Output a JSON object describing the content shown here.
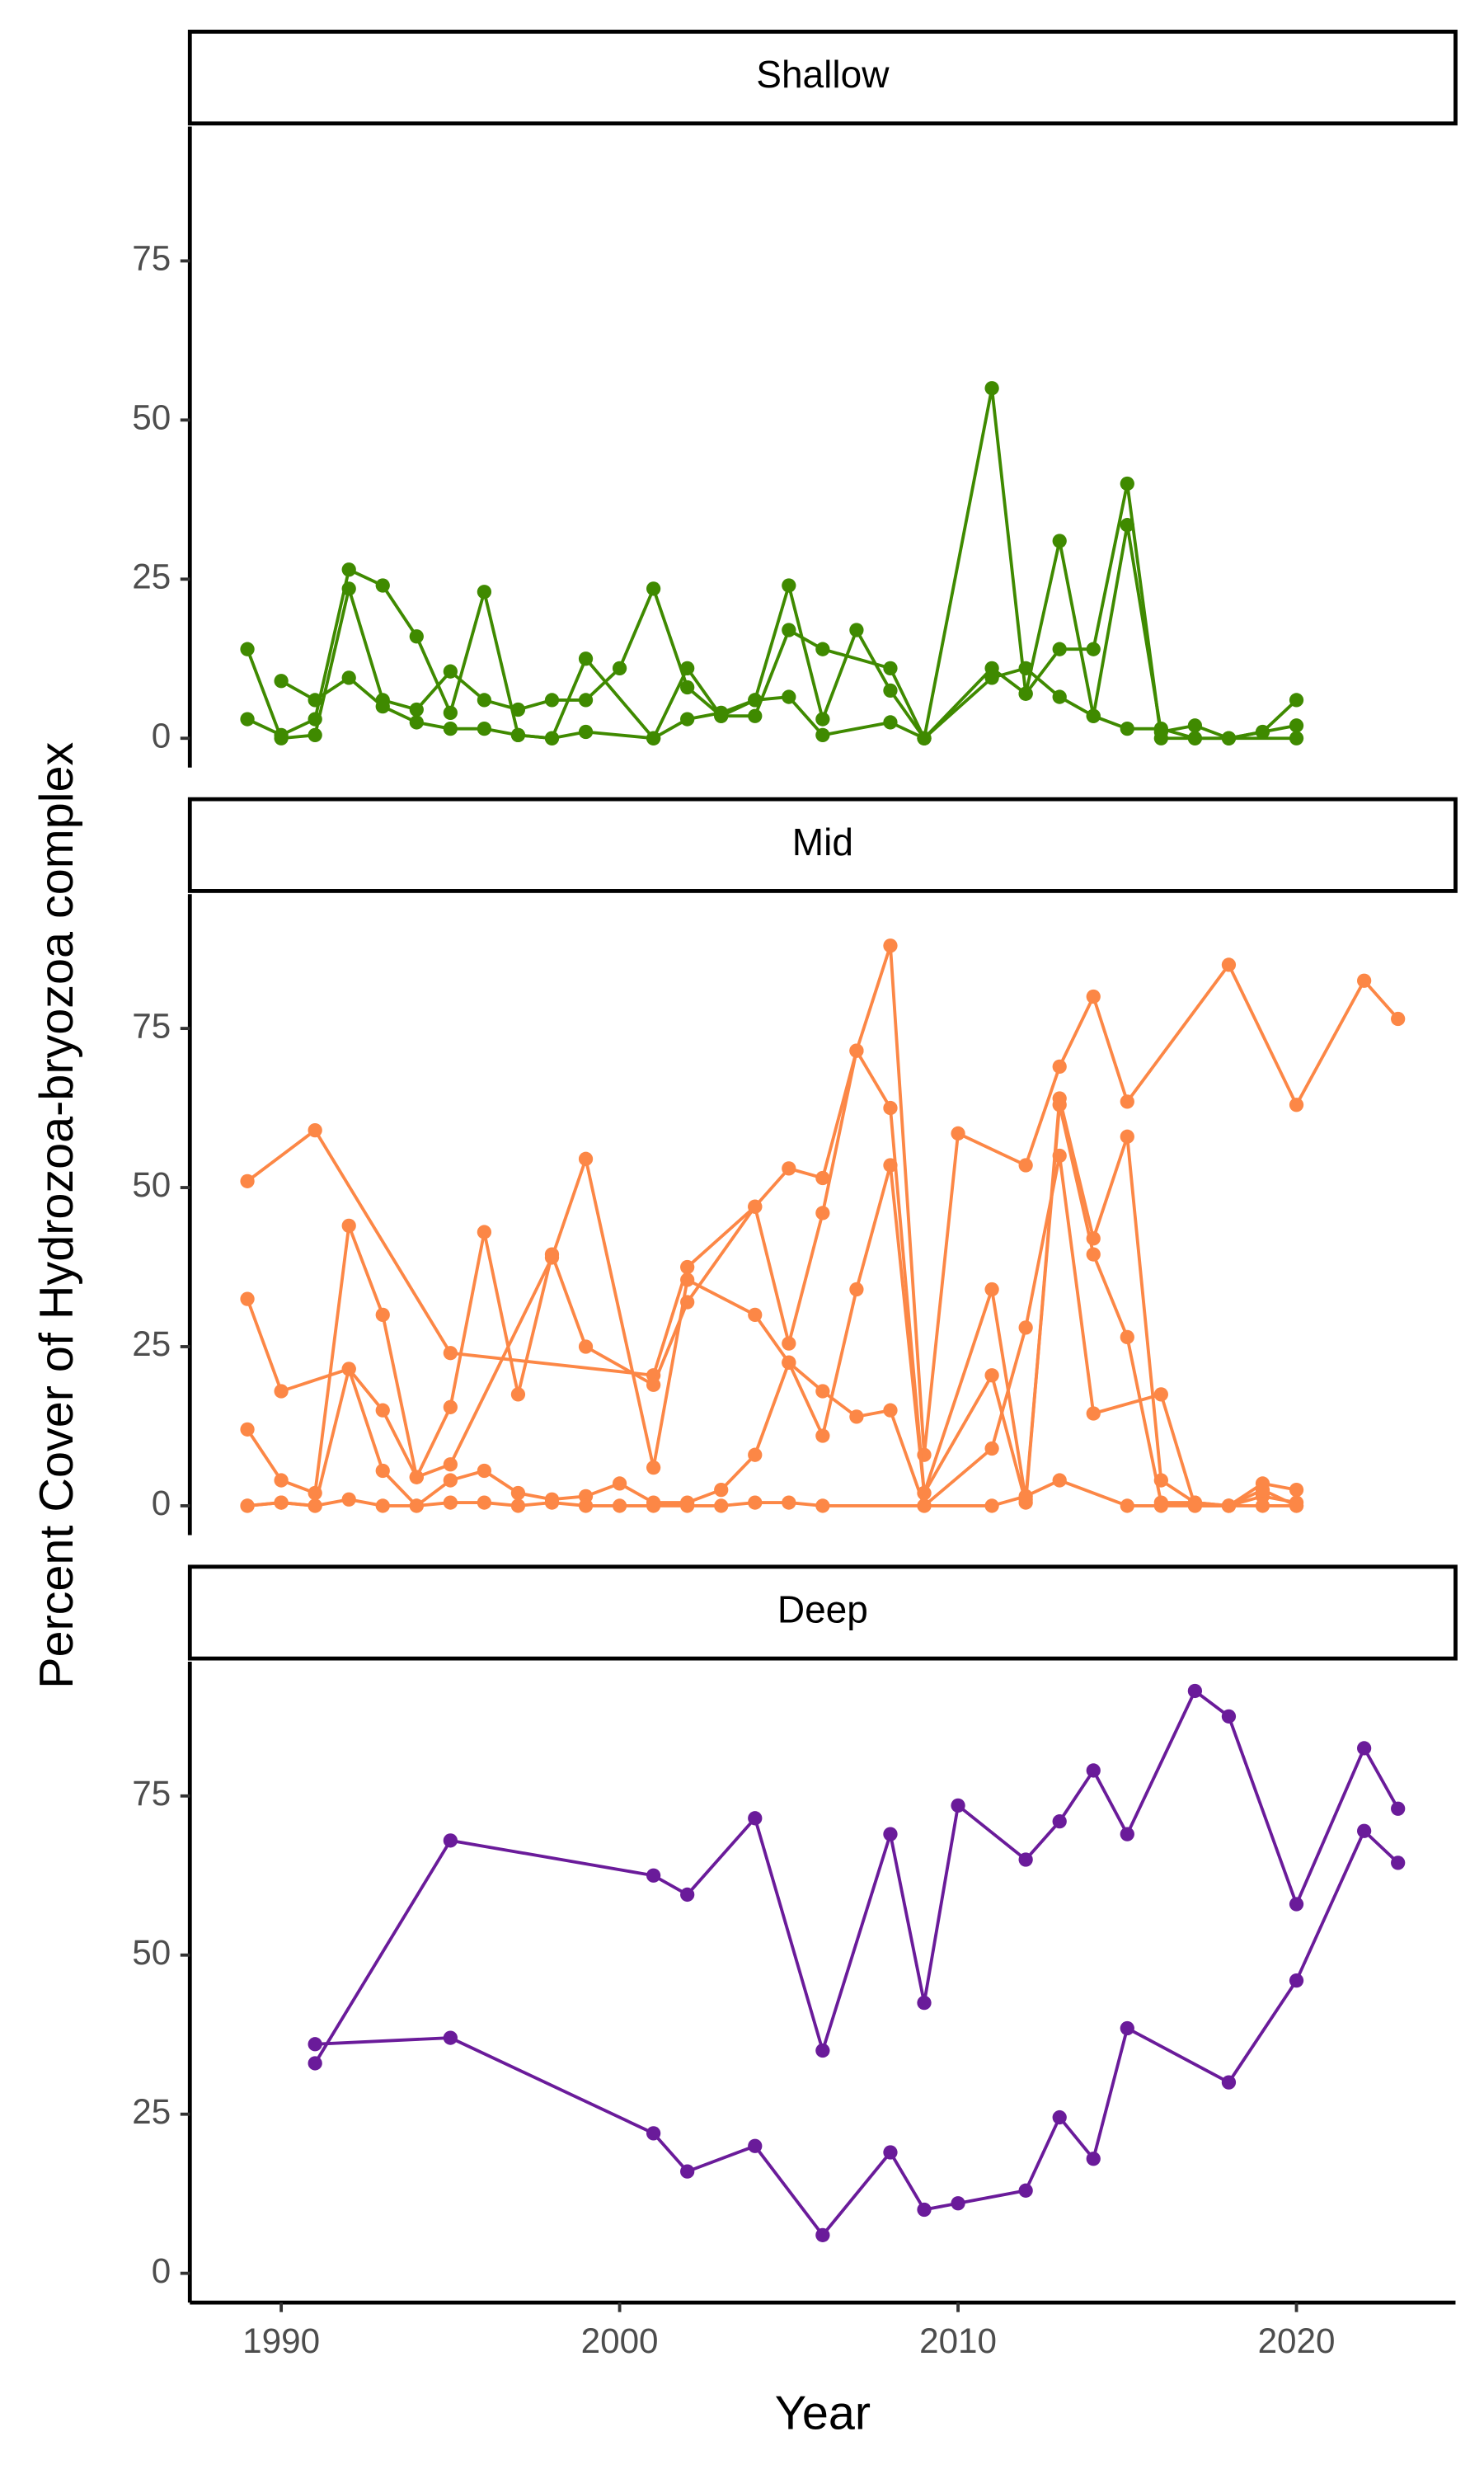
{
  "chart_data": {
    "type": "line",
    "ylabel": "Percent Cover of Hydrozoa-bryozoa complex",
    "xlabel": "Year",
    "xlim": [
      1987.3,
      2024.7
    ],
    "xticks": [
      1990,
      2000,
      2010,
      2020
    ],
    "ylim": [
      -4.6,
      96.1
    ],
    "yticks": [
      0,
      25,
      50,
      75
    ],
    "panels": [
      {
        "title": "Shallow",
        "color": "#3f8a00",
        "series": [
          {
            "x": [
              1989,
              1990,
              1991,
              1992,
              1993,
              1994,
              1995,
              1996,
              1997,
              1998,
              1999,
              2000,
              2001,
              2002,
              2003,
              2004,
              2005,
              2006,
              2007,
              2008,
              2009,
              2011,
              2012,
              2013,
              2014,
              2015,
              2016,
              2017,
              2018,
              2019,
              2020
            ],
            "values": [
              14,
              0,
              0.5,
              23.5,
              6,
              4.5,
              10.5,
              6,
              4.5,
              6,
              6,
              11,
              23.5,
              8,
              3.5,
              6,
              24,
              3,
              17,
              7.5,
              0,
              55,
              7,
              14,
              14,
              40,
              0,
              0,
              0,
              1,
              6
            ]
          },
          {
            "x": [
              1989,
              1990,
              1991,
              1992,
              1993,
              1994,
              1995,
              1996,
              1997,
              1998,
              1999,
              2001,
              2002,
              2003,
              2004,
              2005,
              2006,
              2008,
              2009,
              2011,
              2012,
              2013,
              2014,
              2015,
              2016,
              2017,
              2018,
              2020
            ],
            "values": [
              3,
              0.5,
              3,
              26.5,
              24,
              16,
              4,
              23,
              0.5,
              0,
              12.5,
              0,
              11,
              3.5,
              3.5,
              17,
              14,
              11,
              0,
              11,
              7,
              31,
              3.5,
              33.5,
              1,
              2,
              0,
              2
            ]
          },
          {
            "x": [
              1990,
              1991,
              1992,
              1993,
              1994,
              1995,
              1996,
              1997,
              1998,
              1999,
              2001,
              2002,
              2003,
              2004,
              2005,
              2006,
              2008,
              2009,
              2011,
              2012,
              2013,
              2014,
              2015,
              2016,
              2017,
              2018,
              2020
            ],
            "values": [
              9,
              6,
              9.5,
              5,
              2.5,
              1.5,
              1.5,
              0.5,
              0,
              1,
              0,
              3,
              4,
              6,
              6.5,
              0.5,
              2.5,
              0,
              9.5,
              11,
              6.5,
              3.5,
              1.5,
              1.5,
              0,
              0,
              0
            ]
          }
        ]
      },
      {
        "title": "Mid",
        "color": "#fc8746",
        "series": [
          {
            "x": [
              1989,
              1991,
              1995,
              2001,
              2002,
              2004,
              2005,
              2006,
              2007,
              2008,
              2009,
              2010,
              2012,
              2013,
              2014,
              2015,
              2018,
              2020,
              2022,
              2023
            ],
            "values": [
              51,
              59,
              24,
              20.5,
              37.5,
              47,
              53,
              51.5,
              71.5,
              88,
              8,
              58.5,
              53.5,
              69,
              80,
              63.5,
              85,
              63,
              82.5,
              76.5
            ]
          },
          {
            "x": [
              1989,
              1990,
              1992,
              1993,
              1994,
              1995,
              1996,
              1997,
              1998,
              1999,
              2001,
              2002,
              2004,
              2005,
              2006,
              2007,
              2008,
              2009,
              2011,
              2012,
              2013,
              2014,
              2015,
              2016,
              2017,
              2018,
              2019,
              2020
            ],
            "values": [
              32.5,
              18,
              21.5,
              15,
              4.5,
              15.5,
              43,
              17.5,
              39.5,
              25,
              19,
              32,
              47,
              25.5,
              46,
              71.5,
              62.5,
              2,
              34,
              1,
              63,
              39.5,
              26.5,
              0.5,
              0.5,
              0,
              3.5,
              2.5
            ]
          },
          {
            "x": [
              1989,
              1990,
              1991,
              1992,
              1993,
              1994,
              1995,
              1998,
              1999,
              2001,
              2002,
              2004,
              2005,
              2006,
              2007,
              2008,
              2009,
              2011,
              2012,
              2013,
              2014,
              2015,
              2016,
              2017,
              2018,
              2019,
              2020
            ],
            "values": [
              12,
              4,
              2,
              44,
              30,
              4.5,
              6.5,
              39,
              54.5,
              6,
              35.5,
              30,
              22.5,
              11,
              34,
              53.5,
              2,
              20.5,
              0.5,
              64,
              42,
              58,
              4,
              0.5,
              0,
              1.5,
              0.5
            ]
          },
          {
            "x": [
              1989,
              1990,
              1991,
              1992,
              1993,
              1994,
              1995,
              1996,
              1997,
              1998,
              1999,
              2000,
              2001,
              2002,
              2003,
              2004,
              2005,
              2006,
              2007,
              2008,
              2009,
              2011,
              2012,
              2013,
              2014,
              2016,
              2017,
              2018,
              2019,
              2020
            ],
            "values": [
              0,
              0.5,
              0,
              21.5,
              5.5,
              0,
              4,
              5.5,
              2,
              1,
              1.5,
              3.5,
              0.5,
              0.5,
              2.5,
              8,
              22.5,
              18,
              14,
              15,
              0,
              9,
              28,
              55,
              14.5,
              17.5,
              0,
              0,
              2.5,
              0
            ]
          },
          {
            "x": [
              1989,
              1990,
              1991,
              1992,
              1993,
              1994,
              1995,
              1996,
              1997,
              1998,
              1999,
              2000,
              2001,
              2002,
              2003,
              2004,
              2005,
              2006,
              2009,
              2011,
              2012,
              2013,
              2015,
              2016,
              2017,
              2018,
              2019,
              2020
            ],
            "values": [
              0,
              0.5,
              0,
              1,
              0,
              0,
              0.5,
              0.5,
              0,
              0.5,
              0,
              0,
              0,
              0,
              0,
              0.5,
              0.5,
              0,
              0,
              0,
              1.5,
              4,
              0,
              0,
              0,
              0,
              0,
              0
            ]
          }
        ]
      },
      {
        "title": "Deep",
        "color": "#6a1b9a",
        "series": [
          {
            "x": [
              1991,
              1995,
              2001,
              2002,
              2004,
              2006,
              2008,
              2009,
              2010,
              2012,
              2013,
              2014,
              2015,
              2017,
              2018,
              2020,
              2022,
              2023
            ],
            "values": [
              33,
              68,
              62.5,
              59.5,
              71.5,
              35,
              69,
              42.5,
              73.5,
              65,
              71,
              79,
              69,
              91.5,
              87.5,
              58,
              82.5,
              73
            ]
          },
          {
            "x": [
              1991,
              1995,
              2001,
              2002,
              2004,
              2006,
              2008,
              2009,
              2010,
              2012,
              2013,
              2014,
              2015,
              2018,
              2020,
              2022,
              2023
            ],
            "values": [
              36,
              37,
              22,
              16,
              20,
              6,
              19,
              10,
              11,
              13,
              24.5,
              18,
              38.5,
              30,
              46,
              69.5,
              64.5
            ]
          }
        ]
      }
    ]
  }
}
